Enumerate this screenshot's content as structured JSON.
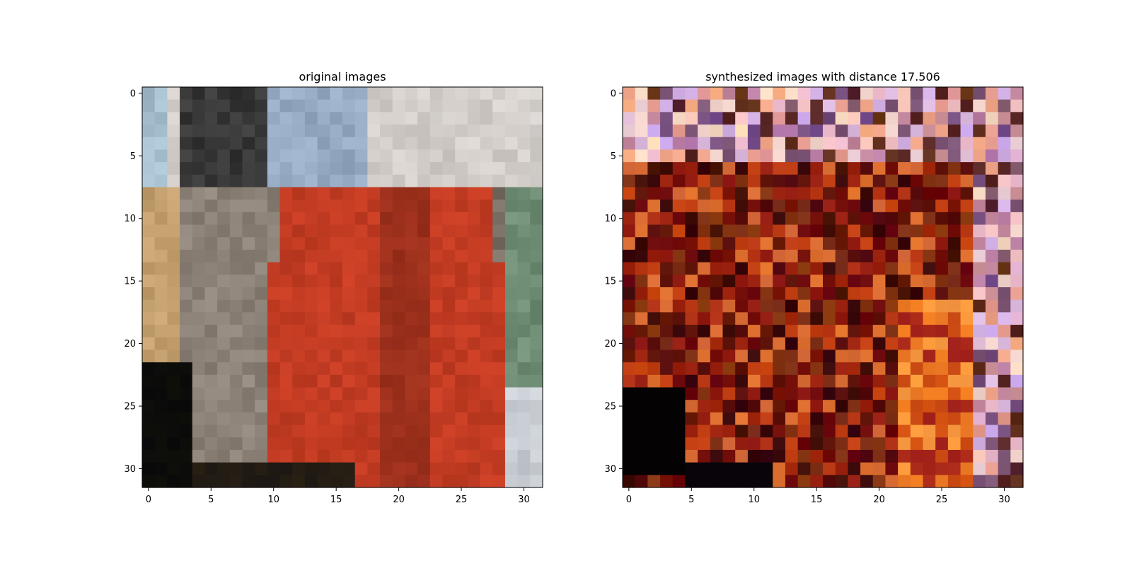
{
  "chart_data": [
    {
      "type": "heatmap",
      "title": "original images",
      "xlabel": "",
      "ylabel": "",
      "xlim": [
        -0.5,
        31.5
      ],
      "ylim": [
        31.5,
        -0.5
      ],
      "xticks": [
        0,
        5,
        10,
        15,
        20,
        25,
        30
      ],
      "yticks": [
        0,
        5,
        10,
        15,
        20,
        25,
        30
      ],
      "grid": false,
      "image_size": [
        32,
        32
      ],
      "content": "pixelated RGB image: grey-blue background with a large red region in the center-right, tan/grey shapes on the left, dark lower-left corner, pale strip on the right",
      "palette": [
        "#a9c2d4",
        "#7a8d99",
        "#4a4a4a",
        "#2b2b2b",
        "#9fb0c7",
        "#e5e8ea",
        "#c9b8a5",
        "#8a6a4a",
        "#c23a22",
        "#a82a1c",
        "#8a1f18",
        "#d8a868",
        "#9a8a7a",
        "#6a8a6a",
        "#2a3a2a",
        "#111111",
        "#c8c8cc"
      ]
    },
    {
      "type": "heatmap",
      "title": "synthesized images with distance 17.506",
      "xlabel": "",
      "ylabel": "",
      "xlim": [
        -0.5,
        31.5
      ],
      "ylim": [
        31.5,
        -0.5
      ],
      "xticks": [
        0,
        5,
        10,
        15,
        20,
        25,
        30
      ],
      "yticks": [
        0,
        5,
        10,
        15,
        20,
        25,
        30
      ],
      "grid": false,
      "image_size": [
        32,
        32
      ],
      "distance": 17.506,
      "content": "noisy pixelated RGB image: dark reds and browns dominate the center, pinks and lavenders along the top and right, black block in the lower-left, orange patches lower right",
      "palette": [
        "#2a0a08",
        "#5a0e0c",
        "#8a1a10",
        "#b02a14",
        "#d04a1a",
        "#e88a3a",
        "#f0b090",
        "#e8b0c8",
        "#c8a0d8",
        "#f8d8e8",
        "#7a5a8a",
        "#3a2a10",
        "#000000",
        "#a06030",
        "#6a4a2a",
        "#f0e8d8"
      ]
    }
  ]
}
